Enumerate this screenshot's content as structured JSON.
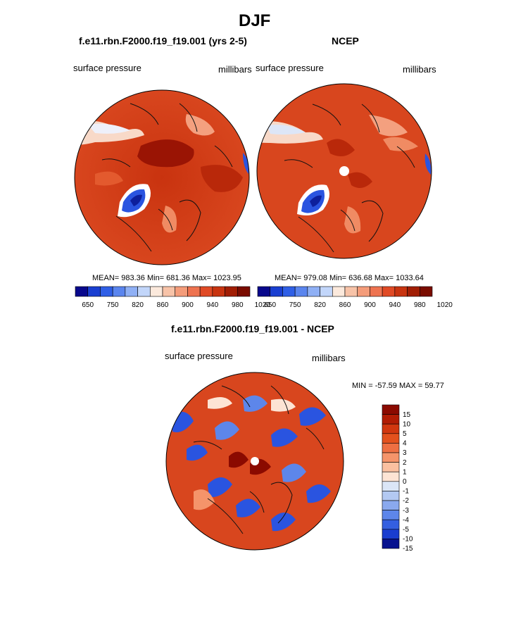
{
  "page": {
    "title": "DJF"
  },
  "panels": [
    {
      "title": "f.e11.rbn.F2000.f19_f19.001 (yrs 2-5)",
      "left_label": "surface pressure",
      "right_label": "millibars",
      "stats": "MEAN= 983.36  Min= 681.36  Max= 1023.95"
    },
    {
      "title": "NCEP",
      "left_label": "surface pressure",
      "right_label": "millibars",
      "stats": "MEAN= 979.08  Min= 636.68  Max= 1033.64"
    },
    {
      "title": "f.e11.rbn.F2000.f19_f19.001 - NCEP",
      "left_label": "surface pressure",
      "right_label": "millibars",
      "stats": "MIN = -57.59 MAX =  59.77"
    }
  ],
  "colorbar_horizontal": {
    "colors": [
      "#08088c",
      "#1a3fd1",
      "#2f5fe6",
      "#5a85ee",
      "#8fb0f5",
      "#c2d6fa",
      "#fbe9dc",
      "#f7c3a8",
      "#f49c7a",
      "#ee7350",
      "#e04a25",
      "#c83410",
      "#a11e04",
      "#7a0c00"
    ],
    "labels": [
      "650",
      "750",
      "820",
      "860",
      "900",
      "940",
      "980",
      "1020"
    ]
  },
  "colorbar_vertical": {
    "colors": [
      "#8b0a00",
      "#b11c04",
      "#d1370f",
      "#e3511d",
      "#ee6f42",
      "#f5946a",
      "#fac0a0",
      "#fde4d4",
      "#dbe6f7",
      "#b3c9f2",
      "#8aa9ee",
      "#5d86ea",
      "#345fe0",
      "#1a3dcf",
      "#08138f"
    ],
    "labels": [
      "15",
      "10",
      "5",
      "4",
      "3",
      "2",
      "1",
      "0",
      "-1",
      "-2",
      "-3",
      "-4",
      "-5",
      "-10",
      "-15"
    ]
  },
  "colors": {
    "base_red": "#d8461e",
    "dark_red": "#9a1404",
    "blue": "#2a54e0",
    "pale": "#f8d9c8"
  }
}
